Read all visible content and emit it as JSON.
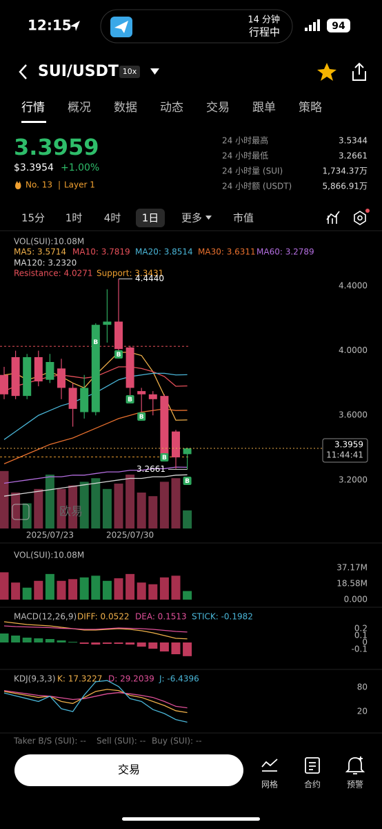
{
  "status_bar": {
    "time": "12:15",
    "trip_minutes": "14 分钟",
    "trip_status": "行程中",
    "battery": "94"
  },
  "header": {
    "pair": "SUI/USDT",
    "leverage": "10x"
  },
  "tabs": [
    "行情",
    "概况",
    "数据",
    "动态",
    "交易",
    "跟单",
    "策略"
  ],
  "price": {
    "last": "3.3959",
    "usd": "$3.3954",
    "change": "+1.00%",
    "rank": "No. 13",
    "sector": "Layer 1"
  },
  "stats": [
    {
      "label": "24 小时最高",
      "value": "3.5344"
    },
    {
      "label": "24 小时最低",
      "value": "3.2661"
    },
    {
      "label": "24 小时量 (SUI)",
      "value": "1,734.37万"
    },
    {
      "label": "24 小时额 (USDT)",
      "value": "5,866.91万"
    }
  ],
  "timeframes": [
    "15分",
    "1时",
    "4时",
    "1日",
    "更多",
    "市值"
  ],
  "chart_data": [
    {
      "type": "candlestick",
      "legend_title": "VOL(SUI):10.08M",
      "up_color": "#2ea85e",
      "down_color": "#dc4a6e",
      "categories": [
        null,
        null,
        null,
        null,
        "2025/07/23",
        null,
        null,
        null,
        null,
        null,
        null,
        "2025/07/30",
        null,
        null,
        null,
        null,
        null
      ],
      "open": [
        3.85,
        3.96,
        3.72,
        3.96,
        3.82,
        3.89,
        3.77,
        3.62,
        3.62,
        4.16,
        4.18,
        4.02,
        3.75,
        3.73,
        3.72,
        3.5,
        3.36
      ],
      "high": [
        3.9,
        4.0,
        3.98,
        4.0,
        3.98,
        3.95,
        3.8,
        3.85,
        4.17,
        4.38,
        4.444,
        4.03,
        3.77,
        3.75,
        3.73,
        3.51,
        3.4
      ],
      "low": [
        3.7,
        3.7,
        3.7,
        3.78,
        3.8,
        3.7,
        3.53,
        3.58,
        3.6,
        4.05,
        4.0,
        3.72,
        3.62,
        3.6,
        3.36,
        3.27,
        3.2661
      ],
      "close": [
        3.73,
        3.72,
        3.96,
        3.81,
        3.93,
        3.77,
        3.64,
        3.77,
        4.16,
        4.18,
        4.01,
        3.77,
        3.73,
        3.7,
        3.36,
        3.34,
        3.3959
      ],
      "series": [
        {
          "name": "MA5: 3.5714",
          "color": "#f0b04a",
          "values": [
            3.85,
            3.86,
            3.82,
            3.84,
            3.87,
            3.84,
            3.8,
            3.77,
            3.85,
            3.92,
            3.99,
            3.99,
            3.97,
            3.87,
            3.72,
            3.57,
            3.5714
          ]
        },
        {
          "name": "MA10: 3.7819",
          "color": "#e8505a",
          "values": [
            3.75,
            3.78,
            3.8,
            3.82,
            3.84,
            3.85,
            3.84,
            3.83,
            3.84,
            3.87,
            3.9,
            3.9,
            3.89,
            3.87,
            3.84,
            3.78,
            3.7819
          ]
        },
        {
          "name": "MA20: 3.8514",
          "color": "#4ab6d8",
          "values": [
            3.45,
            3.5,
            3.55,
            3.6,
            3.63,
            3.66,
            3.68,
            3.71,
            3.74,
            3.78,
            3.82,
            3.84,
            3.85,
            3.86,
            3.86,
            3.85,
            3.8514
          ]
        },
        {
          "name": "MA30: 3.6311",
          "color": "#e8702e",
          "values": [
            3.3,
            3.33,
            3.36,
            3.39,
            3.42,
            3.44,
            3.46,
            3.49,
            3.52,
            3.55,
            3.58,
            3.6,
            3.62,
            3.63,
            3.64,
            3.63,
            3.6311
          ]
        },
        {
          "name": "MA60: 3.2789",
          "color": "#b46ee0",
          "values": [
            3.18,
            3.19,
            3.2,
            3.21,
            3.22,
            3.22,
            3.23,
            3.23,
            3.24,
            3.25,
            3.25,
            3.26,
            3.26,
            3.27,
            3.27,
            3.28,
            3.2789
          ]
        },
        {
          "name": "MA120: 3.2320",
          "color": "#d8d8d8",
          "values": [
            3.1,
            3.11,
            3.12,
            3.13,
            3.14,
            3.15,
            3.16,
            3.17,
            3.18,
            3.19,
            3.2,
            3.21,
            3.21,
            3.22,
            3.22,
            3.23,
            3.232
          ]
        }
      ],
      "resistance": {
        "label": "Resistance: 4.0271",
        "value": 4.0271,
        "color": "#e8505a"
      },
      "support": {
        "label": "Support: 3.3431",
        "value": 3.3431,
        "color": "#f0a030"
      },
      "high_annotation": "4.4440",
      "low_annotation": "3.2661",
      "last_price": {
        "label": "3.3959",
        "time": "11:44:41"
      },
      "buy_marker": "B",
      "watermark": "欧易",
      "ylim": [
        2.9,
        4.46
      ],
      "yticks": [
        {
          "value": 4.4,
          "label": "4.4000"
        },
        {
          "value": 4.0,
          "label": "4.0000"
        },
        {
          "value": 3.6,
          "label": "3.6000"
        },
        {
          "value": 3.2,
          "label": "3.2000"
        }
      ]
    },
    {
      "type": "bar",
      "title": "VOL(SUI):10.08M",
      "values": [
        32,
        20,
        14,
        22,
        30,
        22,
        24,
        26,
        28,
        22,
        25,
        30,
        20,
        18,
        26,
        28,
        10.08
      ],
      "ylim": [
        0,
        40
      ],
      "yticks": [
        {
          "value": 37.17,
          "label": "37.17M"
        },
        {
          "value": 18.58,
          "label": "18.58M"
        },
        {
          "value": 0,
          "label": "0.000"
        }
      ]
    },
    {
      "type": "macd",
      "title": "MACD(12,26,9)",
      "series": [
        {
          "name": "DIFF: 0.0522",
          "color": "#f0b04a",
          "values": [
            0.3,
            0.28,
            0.26,
            0.25,
            0.24,
            0.22,
            0.2,
            0.18,
            0.18,
            0.19,
            0.2,
            0.19,
            0.17,
            0.14,
            0.1,
            0.06,
            0.0522
          ]
        },
        {
          "name": "DEA: 0.1513",
          "color": "#e0509a",
          "values": [
            0.24,
            0.23,
            0.225,
            0.22,
            0.215,
            0.205,
            0.2,
            0.19,
            0.19,
            0.2,
            0.21,
            0.205,
            0.2,
            0.19,
            0.175,
            0.16,
            0.1513
          ]
        }
      ],
      "histogram": {
        "name": "STICK: -0.1982",
        "color": "#4ab6d8",
        "values": [
          0.13,
          0.1,
          0.07,
          0.06,
          0.05,
          0.03,
          0.01,
          -0.02,
          -0.03,
          -0.02,
          -0.02,
          -0.03,
          -0.06,
          -0.09,
          -0.13,
          -0.17,
          -0.1982
        ]
      },
      "ylim": [
        -0.2,
        0.3
      ],
      "yticks": [
        0.2,
        0.1,
        0,
        -0.1
      ]
    },
    {
      "type": "kdj",
      "title": "KDJ(9,3,3)",
      "series": [
        {
          "name": "K: 17.3227",
          "color": "#f0b04a",
          "values": [
            70,
            65,
            60,
            55,
            58,
            45,
            40,
            55,
            70,
            75,
            72,
            60,
            55,
            45,
            35,
            22,
            17.3227
          ]
        },
        {
          "name": "D: 29.2039",
          "color": "#e0509a",
          "values": [
            72,
            68,
            64,
            60,
            58,
            54,
            50,
            52,
            58,
            64,
            67,
            64,
            60,
            55,
            45,
            33,
            29.2039
          ]
        },
        {
          "name": "J: -6.4396",
          "color": "#4ab6d8",
          "values": [
            66,
            59,
            52,
            45,
            58,
            27,
            20,
            61,
            94,
            97,
            82,
            52,
            45,
            25,
            15,
            0,
            -6.4396
          ]
        }
      ],
      "ylim": [
        -20,
        110
      ],
      "yticks": [
        80,
        20
      ]
    }
  ],
  "taker": [
    "Taker B/S (SUI): --",
    "Sell (SUI): --",
    "Buy (SUI): --"
  ],
  "bottom_bar": {
    "trade": "交易",
    "actions": [
      "网格",
      "合约",
      "预警"
    ]
  }
}
